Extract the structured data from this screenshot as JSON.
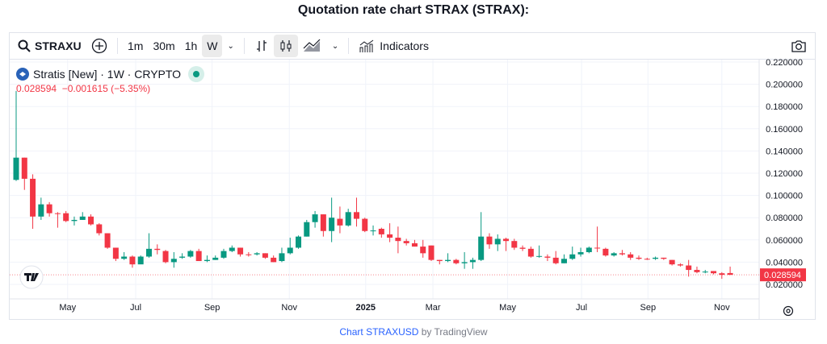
{
  "title": "Quotation rate chart STRAX (STRAX):",
  "toolbar": {
    "symbol": "STRAXUSD",
    "intervals": [
      "1m",
      "30m",
      "1h",
      "W"
    ],
    "selected_interval": "W",
    "indicators": "Indicators"
  },
  "legend": {
    "name": "Stratis [New] · 1W · CRYPTO",
    "last": "0.028594",
    "change": "−0.001615 (−5.35%)"
  },
  "footer": {
    "link": "Chart STRAXUSD",
    "by": " by TradingView"
  },
  "colors": {
    "up": "#089981",
    "down": "#f23645"
  },
  "chart_data": {
    "type": "candlestick",
    "ylim": [
      0.01,
      0.225
    ],
    "y_ticks": [
      "0.020000",
      "0.040000",
      "0.060000",
      "0.080000",
      "0.100000",
      "0.120000",
      "0.140000",
      "0.160000",
      "0.180000",
      "0.200000",
      "0.220000"
    ],
    "x_ticks": [
      "May",
      "Jul",
      "Sep",
      "Nov",
      "2025",
      "Mar",
      "May",
      "Jul",
      "Sep",
      "Nov"
    ],
    "last_price_label": "0.028594",
    "ohlc": [
      [
        0.114,
        0.194,
        0.113,
        0.134
      ],
      [
        0.134,
        0.134,
        0.105,
        0.115
      ],
      [
        0.115,
        0.119,
        0.07,
        0.081
      ],
      [
        0.081,
        0.098,
        0.078,
        0.092
      ],
      [
        0.092,
        0.094,
        0.081,
        0.084
      ],
      [
        0.084,
        0.085,
        0.071,
        0.0838
      ],
      [
        0.084,
        0.086,
        0.076,
        0.077
      ],
      [
        0.077,
        0.081,
        0.073,
        0.078
      ],
      [
        0.078,
        0.085,
        0.078,
        0.081
      ],
      [
        0.081,
        0.083,
        0.073,
        0.074
      ],
      [
        0.074,
        0.075,
        0.064,
        0.066
      ],
      [
        0.066,
        0.066,
        0.052,
        0.053
      ],
      [
        0.053,
        0.053,
        0.041,
        0.043
      ],
      [
        0.043,
        0.049,
        0.042,
        0.045
      ],
      [
        0.045,
        0.046,
        0.035,
        0.038
      ],
      [
        0.038,
        0.046,
        0.039,
        0.045
      ],
      [
        0.045,
        0.066,
        0.044,
        0.052
      ],
      [
        0.052,
        0.056,
        0.047,
        0.051
      ],
      [
        0.05,
        0.051,
        0.039,
        0.04
      ],
      [
        0.04,
        0.049,
        0.035,
        0.043
      ],
      [
        0.044,
        0.048,
        0.043,
        0.045
      ],
      [
        0.045,
        0.051,
        0.044,
        0.05
      ],
      [
        0.05,
        0.052,
        0.041,
        0.041
      ],
      [
        0.041,
        0.046,
        0.04,
        0.042
      ],
      [
        0.042,
        0.046,
        0.042,
        0.044
      ],
      [
        0.044,
        0.052,
        0.043,
        0.05
      ],
      [
        0.05,
        0.055,
        0.049,
        0.053
      ],
      [
        0.053,
        0.053,
        0.045,
        0.047
      ],
      [
        0.047,
        0.049,
        0.045,
        0.0465
      ],
      [
        0.047,
        0.049,
        0.046,
        0.048
      ],
      [
        0.048,
        0.048,
        0.043,
        0.044
      ],
      [
        0.044,
        0.046,
        0.04,
        0.04
      ],
      [
        0.041,
        0.053,
        0.04,
        0.048
      ],
      [
        0.048,
        0.062,
        0.047,
        0.053
      ],
      [
        0.053,
        0.064,
        0.052,
        0.063
      ],
      [
        0.063,
        0.078,
        0.063,
        0.076
      ],
      [
        0.076,
        0.086,
        0.071,
        0.083
      ],
      [
        0.083,
        0.083,
        0.063,
        0.068
      ],
      [
        0.068,
        0.098,
        0.058,
        0.08
      ],
      [
        0.079,
        0.09,
        0.066,
        0.073
      ],
      [
        0.073,
        0.088,
        0.072,
        0.085
      ],
      [
        0.085,
        0.098,
        0.072,
        0.079
      ],
      [
        0.079,
        0.08,
        0.067,
        0.068
      ],
      [
        0.068,
        0.073,
        0.064,
        0.0685
      ],
      [
        0.07,
        0.071,
        0.062,
        0.065
      ],
      [
        0.065,
        0.075,
        0.058,
        0.062
      ],
      [
        0.062,
        0.072,
        0.048,
        0.059
      ],
      [
        0.059,
        0.061,
        0.055,
        0.057
      ],
      [
        0.057,
        0.06,
        0.054,
        0.054
      ],
      [
        0.054,
        0.06,
        0.044,
        0.048
      ],
      [
        0.055,
        0.055,
        0.041,
        0.042
      ],
      [
        0.042,
        0.042,
        0.038,
        0.041
      ],
      [
        0.041,
        0.048,
        0.04,
        0.042
      ],
      [
        0.042,
        0.043,
        0.038,
        0.039
      ],
      [
        0.039,
        0.049,
        0.034,
        0.04
      ],
      [
        0.04,
        0.044,
        0.034,
        0.042
      ],
      [
        0.042,
        0.085,
        0.041,
        0.063
      ],
      [
        0.063,
        0.066,
        0.052,
        0.056
      ],
      [
        0.056,
        0.065,
        0.05,
        0.061
      ],
      [
        0.061,
        0.062,
        0.05,
        0.059
      ],
      [
        0.059,
        0.061,
        0.051,
        0.053
      ],
      [
        0.053,
        0.055,
        0.05,
        0.052
      ],
      [
        0.052,
        0.054,
        0.044,
        0.045
      ],
      [
        0.045,
        0.055,
        0.044,
        0.0455
      ],
      [
        0.045,
        0.047,
        0.041,
        0.044
      ],
      [
        0.044,
        0.05,
        0.038,
        0.039
      ],
      [
        0.039,
        0.047,
        0.039,
        0.043
      ],
      [
        0.043,
        0.054,
        0.042,
        0.047
      ],
      [
        0.047,
        0.053,
        0.045,
        0.049
      ],
      [
        0.049,
        0.054,
        0.048,
        0.053
      ],
      [
        0.053,
        0.072,
        0.049,
        0.0525
      ],
      [
        0.052,
        0.053,
        0.045,
        0.046
      ],
      [
        0.046,
        0.049,
        0.045,
        0.048
      ],
      [
        0.048,
        0.051,
        0.046,
        0.047
      ],
      [
        0.047,
        0.049,
        0.042,
        0.044
      ],
      [
        0.044,
        0.046,
        0.042,
        0.043
      ],
      [
        0.043,
        0.044,
        0.042,
        0.0428
      ],
      [
        0.043,
        0.045,
        0.042,
        0.044
      ],
      [
        0.044,
        0.044,
        0.042,
        0.043
      ],
      [
        0.042,
        0.042,
        0.037,
        0.038
      ],
      [
        0.038,
        0.039,
        0.036,
        0.037
      ],
      [
        0.037,
        0.042,
        0.027,
        0.033
      ],
      [
        0.033,
        0.036,
        0.03,
        0.031
      ],
      [
        0.031,
        0.033,
        0.03,
        0.0315
      ],
      [
        0.032,
        0.032,
        0.029,
        0.03
      ],
      [
        0.03,
        0.031,
        0.025,
        0.0286
      ],
      [
        0.0302,
        0.036,
        0.0285,
        0.028594
      ]
    ]
  }
}
